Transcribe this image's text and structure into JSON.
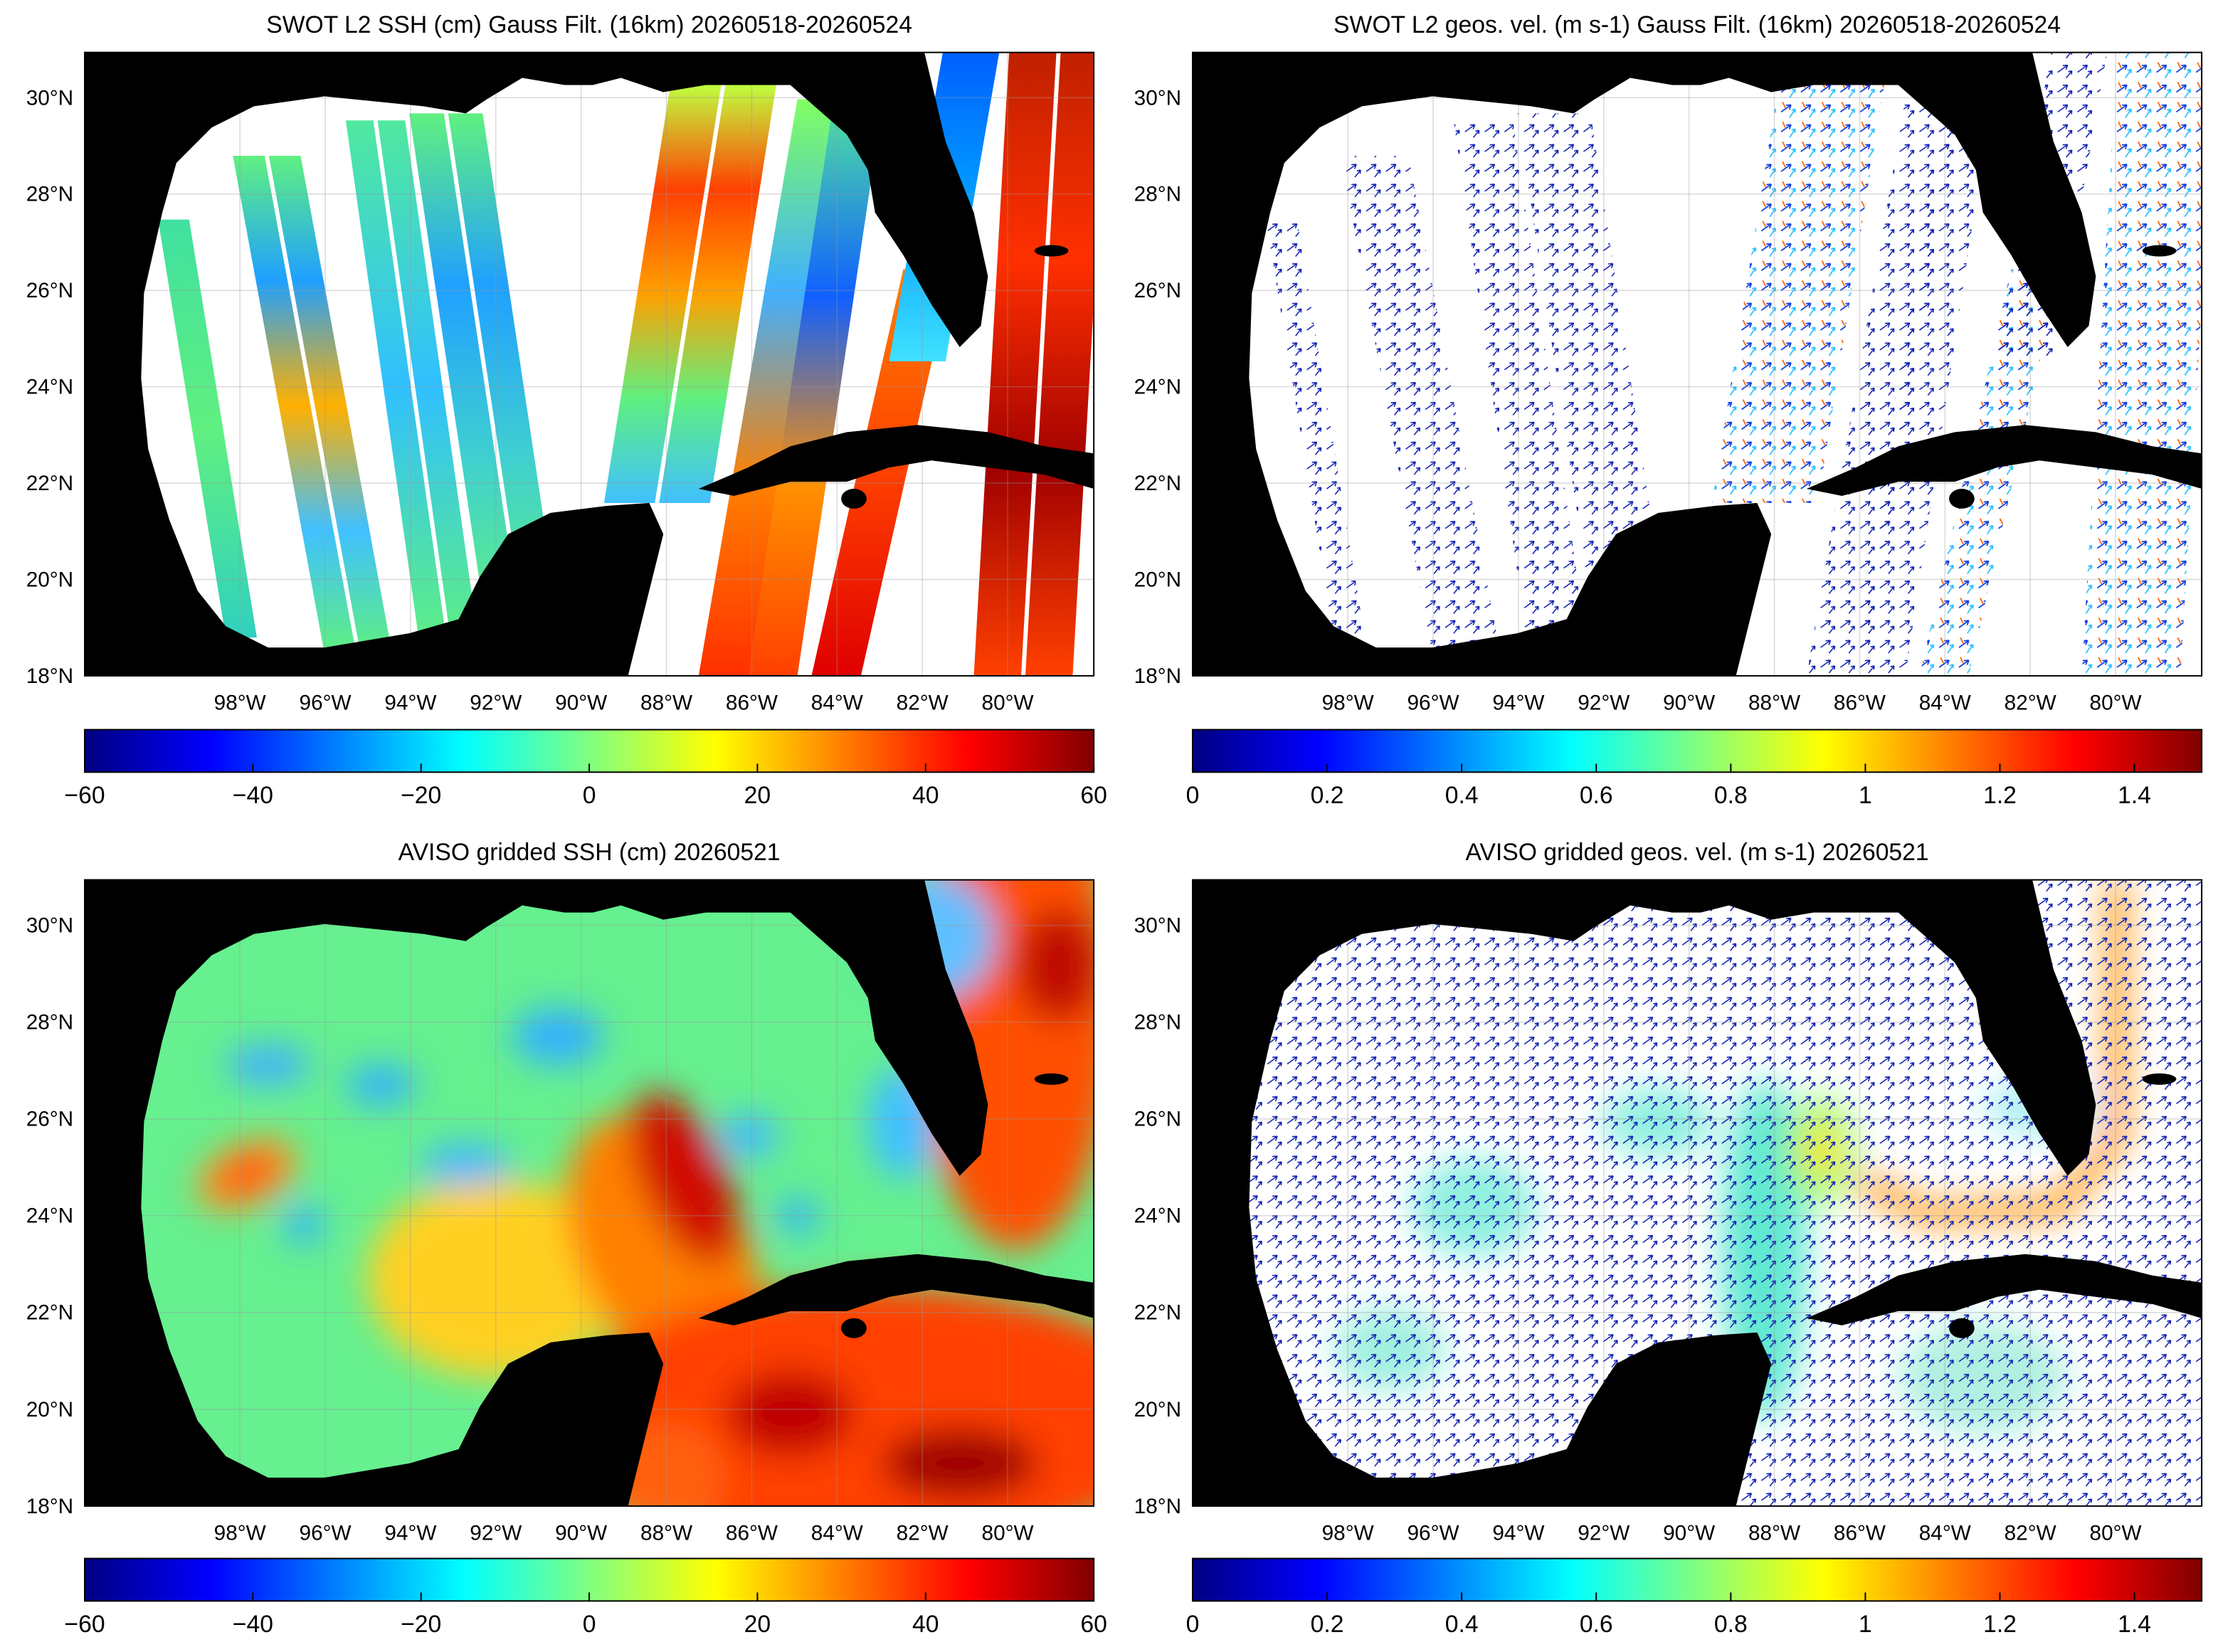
{
  "panels": [
    {
      "title": "SWOT L2 SSH (cm) Gauss Filt. (16km) 20260518-20260524",
      "xlim": [
        -101.64,
        -77.98
      ],
      "ylim": [
        18,
        30.94
      ],
      "lon_ticks": [
        {
          "value": -98,
          "label": "98°W"
        },
        {
          "value": -96,
          "label": "96°W"
        },
        {
          "value": -94,
          "label": "94°W"
        },
        {
          "value": -92,
          "label": "92°W"
        },
        {
          "value": -90,
          "label": "90°W"
        },
        {
          "value": -88,
          "label": "88°W"
        },
        {
          "value": -86,
          "label": "86°W"
        },
        {
          "value": -84,
          "label": "84°W"
        },
        {
          "value": -82,
          "label": "82°W"
        },
        {
          "value": -80,
          "label": "80°W"
        }
      ],
      "lat_ticks": [
        {
          "value": 18,
          "label": "18°N"
        },
        {
          "value": 20,
          "label": "20°N"
        },
        {
          "value": 22,
          "label": "22°N"
        },
        {
          "value": 24,
          "label": "24°N"
        },
        {
          "value": 26,
          "label": "26°N"
        },
        {
          "value": 28,
          "label": "28°N"
        },
        {
          "value": 30,
          "label": "30°N"
        }
      ],
      "colorbar": {
        "range": [
          -60,
          60
        ],
        "ticks": [
          {
            "value": -60,
            "label": "−60"
          },
          {
            "value": -40,
            "label": "−40"
          },
          {
            "value": -20,
            "label": "−20"
          },
          0,
          20,
          40,
          60
        ]
      }
    },
    {
      "title": "SWOT L2 geos. vel. (m s-1) Gauss Filt. (16km) 20260518-20260524",
      "xlim": [
        -101.64,
        -77.98
      ],
      "ylim": [
        18,
        30.94
      ],
      "lon_ticks": [
        {
          "value": -98,
          "label": "98°W"
        },
        {
          "value": -96,
          "label": "96°W"
        },
        {
          "value": -94,
          "label": "94°W"
        },
        {
          "value": -92,
          "label": "92°W"
        },
        {
          "value": -90,
          "label": "90°W"
        },
        {
          "value": -88,
          "label": "88°W"
        },
        {
          "value": -86,
          "label": "86°W"
        },
        {
          "value": -84,
          "label": "84°W"
        },
        {
          "value": -82,
          "label": "82°W"
        },
        {
          "value": -80,
          "label": "80°W"
        }
      ],
      "lat_ticks": [
        {
          "value": 18,
          "label": "18°N"
        },
        {
          "value": 20,
          "label": "20°N"
        },
        {
          "value": 22,
          "label": "22°N"
        },
        {
          "value": 24,
          "label": "24°N"
        },
        {
          "value": 26,
          "label": "26°N"
        },
        {
          "value": 28,
          "label": "28°N"
        },
        {
          "value": 30,
          "label": "30°N"
        }
      ],
      "colorbar": {
        "range": [
          0,
          1.5
        ],
        "ticks": [
          0,
          0.2,
          0.4,
          0.6,
          0.8,
          1,
          1.2,
          1.4
        ]
      }
    },
    {
      "title": "AVISO gridded SSH (cm) 20260521",
      "xlim": [
        -101.64,
        -77.98
      ],
      "ylim": [
        18,
        30.94
      ],
      "lon_ticks": [
        {
          "value": -98,
          "label": "98°W"
        },
        {
          "value": -96,
          "label": "96°W"
        },
        {
          "value": -94,
          "label": "94°W"
        },
        {
          "value": -92,
          "label": "92°W"
        },
        {
          "value": -90,
          "label": "90°W"
        },
        {
          "value": -88,
          "label": "88°W"
        },
        {
          "value": -86,
          "label": "86°W"
        },
        {
          "value": -84,
          "label": "84°W"
        },
        {
          "value": -82,
          "label": "82°W"
        },
        {
          "value": -80,
          "label": "80°W"
        }
      ],
      "lat_ticks": [
        {
          "value": 18,
          "label": "18°N"
        },
        {
          "value": 20,
          "label": "20°N"
        },
        {
          "value": 22,
          "label": "22°N"
        },
        {
          "value": 24,
          "label": "24°N"
        },
        {
          "value": 26,
          "label": "26°N"
        },
        {
          "value": 28,
          "label": "28°N"
        },
        {
          "value": 30,
          "label": "30°N"
        }
      ],
      "colorbar": {
        "range": [
          -60,
          60
        ],
        "ticks": [
          {
            "value": -60,
            "label": "−60"
          },
          {
            "value": -40,
            "label": "−40"
          },
          {
            "value": -20,
            "label": "−20"
          },
          0,
          20,
          40,
          60
        ]
      }
    },
    {
      "title": "AVISO gridded geos. vel. (m s-1)  20260521",
      "xlim": [
        -101.64,
        -77.98
      ],
      "ylim": [
        18,
        30.94
      ],
      "lon_ticks": [
        {
          "value": -98,
          "label": "98°W"
        },
        {
          "value": -96,
          "label": "96°W"
        },
        {
          "value": -94,
          "label": "94°W"
        },
        {
          "value": -92,
          "label": "92°W"
        },
        {
          "value": -90,
          "label": "90°W"
        },
        {
          "value": -88,
          "label": "88°W"
        },
        {
          "value": -86,
          "label": "86°W"
        },
        {
          "value": -84,
          "label": "84°W"
        },
        {
          "value": -82,
          "label": "82°W"
        },
        {
          "value": -80,
          "label": "80°W"
        }
      ],
      "lat_ticks": [
        {
          "value": 18,
          "label": "18°N"
        },
        {
          "value": 20,
          "label": "20°N"
        },
        {
          "value": 22,
          "label": "22°N"
        },
        {
          "value": 24,
          "label": "24°N"
        },
        {
          "value": 26,
          "label": "26°N"
        },
        {
          "value": 28,
          "label": "28°N"
        },
        {
          "value": 30,
          "label": "30°N"
        }
      ],
      "colorbar": {
        "range": [
          0,
          1.5
        ],
        "ticks": [
          0,
          0.2,
          0.4,
          0.6,
          0.8,
          1,
          1.2,
          1.4
        ]
      }
    }
  ]
}
